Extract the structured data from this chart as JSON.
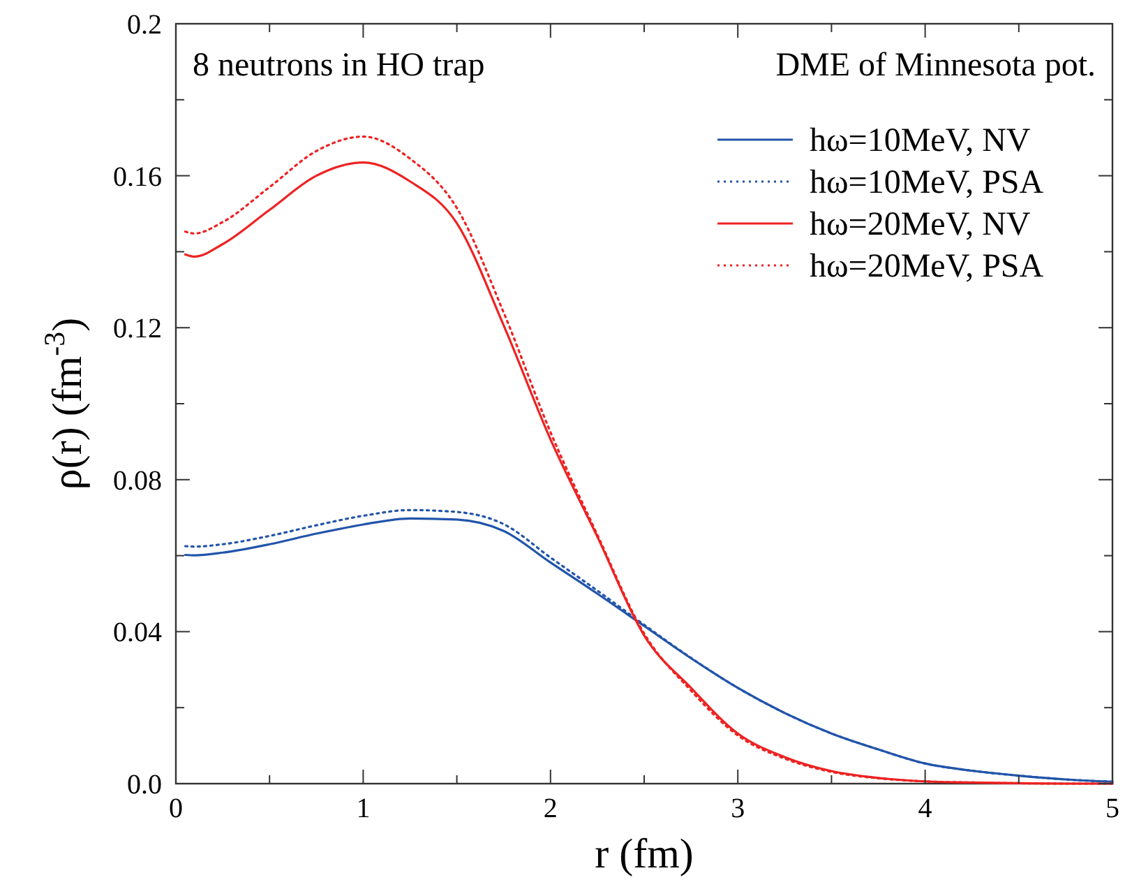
{
  "chart_data": {
    "type": "line",
    "xlabel": "r (fm)",
    "ylabel": "ρ(r) (fm$^{-3}$)",
    "annotations": [
      "8 neutrons in HO trap",
      "DME of Minnesota pot."
    ],
    "x": [
      0.05,
      0.1,
      0.25,
      0.5,
      0.75,
      1,
      1.25,
      1.5,
      1.75,
      2,
      2.25,
      2.5,
      2.75,
      3,
      3.25,
      3.5,
      3.75,
      4,
      4.25,
      4.5,
      4.75,
      5
    ],
    "series": [
      {
        "name": "hω=10MeV, NV",
        "color": "#2255aa",
        "line_style": "solid",
        "values": [
          0.0602,
          0.0601,
          0.0608,
          0.063,
          0.0658,
          0.0682,
          0.0698,
          0.0695,
          0.0665,
          0.0582,
          0.05,
          0.0415,
          0.033,
          0.0252,
          0.0186,
          0.0132,
          0.009,
          0.0053,
          0.0034,
          0.0021,
          0.0011,
          0.0005
        ]
      },
      {
        "name": "hω=10MeV, PSA",
        "color": "#2255aa",
        "line_style": "dotted",
        "values": [
          0.0625,
          0.0624,
          0.063,
          0.0652,
          0.068,
          0.0705,
          0.072,
          0.0715,
          0.0683,
          0.0595,
          0.0508,
          0.0418,
          0.0331,
          0.0252,
          0.0186,
          0.0132,
          0.009,
          0.0053,
          0.0034,
          0.0021,
          0.0011,
          0.0005
        ]
      },
      {
        "name": "hω=20MeV, NV",
        "color": "#ee2222",
        "line_style": "solid",
        "values": [
          0.1393,
          0.1387,
          0.142,
          0.151,
          0.16,
          0.1635,
          0.1585,
          0.1475,
          0.1206,
          0.0906,
          0.065,
          0.039,
          0.0252,
          0.0132,
          0.007,
          0.0033,
          0.0015,
          0.0006,
          0.0003,
          0.0001,
          0,
          0
        ]
      },
      {
        "name": "hω=20MeV, PSA",
        "color": "#ee2222",
        "line_style": "dotted",
        "values": [
          0.1453,
          0.1448,
          0.1478,
          0.157,
          0.1665,
          0.1703,
          0.1645,
          0.1515,
          0.124,
          0.0925,
          0.0655,
          0.0395,
          0.0245,
          0.0127,
          0.0066,
          0.0031,
          0.0014,
          0.0006,
          0.0003,
          0.0001,
          0,
          0
        ]
      }
    ],
    "xlim": [
      0,
      5
    ],
    "xticks": [
      0,
      {
        "value": 0.5,
        "label": null
      },
      1,
      {
        "value": 1.5,
        "label": null
      },
      2,
      {
        "value": 2.5,
        "label": null
      },
      3,
      {
        "value": 3.5,
        "label": null
      },
      4,
      {
        "value": 4.5,
        "label": null
      },
      5
    ],
    "ylim": [
      0,
      0.2
    ],
    "yticks": [
      {
        "value": 0,
        "label": "0.0"
      },
      {
        "value": 0.02,
        "label": null
      },
      0.04,
      {
        "value": 0.06,
        "label": null
      },
      0.08,
      {
        "value": 0.1,
        "label": null
      },
      0.12,
      {
        "value": 0.14,
        "label": null
      },
      0.16,
      {
        "value": 0.18,
        "label": null
      },
      0.2
    ],
    "grid": false,
    "legend": "top right"
  }
}
